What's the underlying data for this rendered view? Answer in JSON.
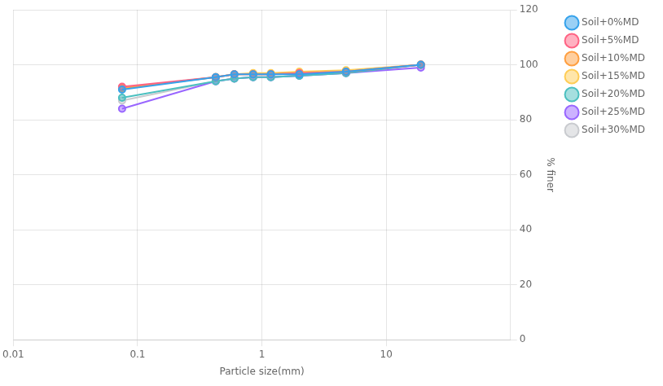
{
  "chart_data": {
    "type": "line",
    "x": [
      0.075,
      0.425,
      0.6,
      0.85,
      1.18,
      2.0,
      4.75,
      19.0
    ],
    "series": [
      {
        "name": "Soil+0%MD",
        "values": [
          91,
          95.5,
          96.5,
          96.5,
          96.5,
          96.5,
          97.5,
          100
        ]
      },
      {
        "name": "Soil+5%MD",
        "values": [
          92,
          95.5,
          96.5,
          96.5,
          96.5,
          97,
          97.5,
          100
        ]
      },
      {
        "name": "Soil+10%MD",
        "values": [
          91.5,
          95.5,
          96.5,
          96.5,
          96.5,
          97,
          97.5,
          100
        ]
      },
      {
        "name": "Soil+15%MD",
        "values": [
          91.5,
          95.5,
          96.5,
          97,
          97,
          97.5,
          98,
          100
        ]
      },
      {
        "name": "Soil+20%MD",
        "values": [
          88,
          94,
          95,
          95.5,
          95.5,
          96,
          97,
          100
        ]
      },
      {
        "name": "Soil+25%MD",
        "values": [
          84,
          94,
          95,
          95.5,
          95.5,
          96,
          97,
          99
        ]
      },
      {
        "name": "Soil+30%MD",
        "values": [
          87,
          94,
          95,
          95.5,
          95.5,
          96,
          97,
          100
        ]
      }
    ],
    "xlabel": "Particle size(mm)",
    "ylabel": "% finer",
    "xlim": [
      0.01,
      100
    ],
    "xticks": [
      0.01,
      0.1,
      1,
      10
    ],
    "ylim": [
      0,
      120
    ],
    "yticks": [
      0,
      20,
      40,
      60,
      80,
      100,
      120
    ],
    "log": "x",
    "grid": true,
    "legend": "right",
    "marker": "circle"
  }
}
